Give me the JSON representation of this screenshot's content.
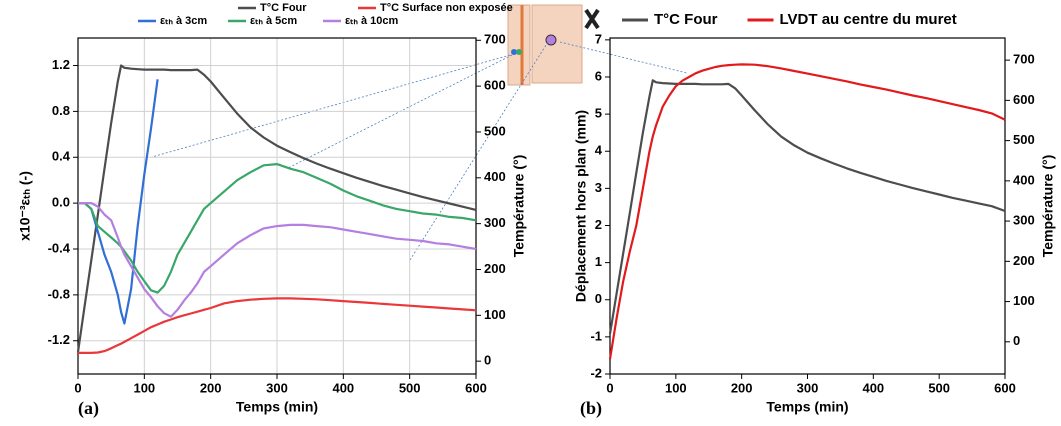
{
  "chart_data": [
    {
      "type": "line",
      "panel_label": "(a)",
      "x_label": "Temps (min)",
      "y_label": "x10⁻³εₜₕ (-)",
      "y2_label": "Température (°)",
      "xlim": [
        0,
        600
      ],
      "xticks": [
        0,
        100,
        200,
        300,
        400,
        500,
        600
      ],
      "ylim": [
        -1.49,
        1.44
      ],
      "yticks": [
        -1.2,
        -0.8,
        -0.4,
        {
          "value": 0,
          "label": "0.0"
        },
        0.4,
        0.8,
        1.2
      ],
      "y2lim": [
        -28,
        705
      ],
      "y2ticks": [
        0,
        100,
        200,
        300,
        400,
        500,
        600,
        700
      ],
      "grid": true,
      "x": [
        0,
        10,
        20,
        30,
        40,
        50,
        60,
        65,
        70,
        80,
        90,
        100,
        110,
        120,
        130,
        140,
        150,
        160,
        170,
        180,
        190,
        200,
        220,
        240,
        260,
        280,
        300,
        320,
        340,
        360,
        380,
        400,
        420,
        440,
        460,
        480,
        500,
        520,
        540,
        560,
        580,
        600
      ],
      "series": [
        {
          "name": "T°C Four",
          "color": "#4d4d4d",
          "axis": "y2",
          "values": [
            20,
            120,
            220,
            320,
            420,
            520,
            610,
            645,
            640,
            638,
            637,
            636,
            636,
            636,
            636,
            635,
            635,
            635,
            635,
            636,
            625,
            610,
            575,
            540,
            510,
            488,
            470,
            456,
            443,
            431,
            420,
            410,
            400,
            391,
            382,
            374,
            366,
            358,
            351,
            344,
            337,
            330
          ]
        },
        {
          "name": "T°C Surface non exposée",
          "color": "#e8383a",
          "axis": "y2",
          "values": [
            18,
            18,
            18,
            19,
            22,
            28,
            35,
            38,
            42,
            50,
            58,
            66,
            74,
            80,
            86,
            91,
            96,
            100,
            104,
            108,
            112,
            116,
            126,
            131,
            134,
            136,
            137,
            137,
            136,
            135,
            133,
            131,
            129,
            127,
            125,
            123,
            121,
            119,
            117,
            115,
            113,
            111
          ]
        },
        {
          "name": "εₜₕ à 3cm",
          "color": "#2f6fd6",
          "values": [
            0,
            0,
            -0.05,
            -0.25,
            -0.45,
            -0.6,
            -0.8,
            -0.95,
            -1.05,
            -0.75,
            -0.2,
            0.25,
            0.65,
            1.08,
            null,
            null,
            null,
            null,
            null,
            null,
            null,
            null,
            null,
            null,
            null,
            null,
            null,
            null,
            null,
            null,
            null,
            null,
            null,
            null,
            null,
            null,
            null,
            null,
            null,
            null,
            null,
            null
          ]
        },
        {
          "name": "εₜₕ à 5cm",
          "color": "#3aa66a",
          "values": [
            0,
            0,
            -0.05,
            -0.2,
            -0.25,
            -0.3,
            -0.35,
            -0.38,
            -0.42,
            -0.5,
            -0.6,
            -0.68,
            -0.76,
            -0.78,
            -0.72,
            -0.6,
            -0.45,
            -0.35,
            -0.25,
            -0.15,
            -0.05,
            0,
            0.1,
            0.2,
            0.27,
            0.33,
            0.34,
            0.3,
            0.27,
            0.22,
            0.17,
            0.11,
            0.06,
            0.02,
            -0.02,
            -0.05,
            -0.07,
            -0.09,
            -0.1,
            -0.12,
            -0.13,
            -0.15
          ]
        },
        {
          "name": "εₜₕ à 10cm",
          "color": "#b47fe0",
          "values": [
            0,
            0,
            0,
            -0.03,
            -0.1,
            -0.15,
            -0.3,
            -0.38,
            -0.45,
            -0.55,
            -0.65,
            -0.75,
            -0.82,
            -0.9,
            -0.96,
            -0.99,
            -0.93,
            -0.85,
            -0.78,
            -0.7,
            -0.6,
            -0.55,
            -0.45,
            -0.35,
            -0.28,
            -0.22,
            -0.2,
            -0.19,
            -0.19,
            -0.2,
            -0.21,
            -0.23,
            -0.25,
            -0.27,
            -0.29,
            -0.31,
            -0.32,
            -0.33,
            -0.35,
            -0.36,
            -0.38,
            -0.4
          ]
        }
      ]
    },
    {
      "type": "line",
      "panel_label": "(b)",
      "x_label": "Temps (min)",
      "y_label": "Déplacement hors plan (mm)",
      "y2_label": "Température (°)",
      "xlim": [
        0,
        600
      ],
      "xticks": [
        0,
        100,
        200,
        300,
        400,
        500,
        600
      ],
      "ylim": [
        -2,
        7.05
      ],
      "yticks": [
        -2,
        -1,
        0,
        1,
        2,
        3,
        4,
        5,
        6,
        7
      ],
      "y2lim": [
        -80,
        755
      ],
      "y2ticks": [
        0,
        100,
        200,
        300,
        400,
        500,
        600,
        700
      ],
      "grid": false,
      "x": [
        0,
        10,
        20,
        30,
        40,
        50,
        60,
        65,
        70,
        80,
        90,
        100,
        110,
        120,
        130,
        140,
        150,
        160,
        170,
        180,
        190,
        200,
        220,
        240,
        260,
        280,
        300,
        320,
        340,
        360,
        380,
        400,
        420,
        440,
        460,
        480,
        500,
        520,
        540,
        560,
        580,
        600
      ],
      "series": [
        {
          "name": "T°C Four",
          "color": "#4d4d4d",
          "axis": "y2",
          "values": [
            20,
            120,
            220,
            320,
            420,
            520,
            610,
            650,
            645,
            643,
            642,
            641,
            641,
            641,
            641,
            640,
            640,
            640,
            640,
            641,
            630,
            612,
            575,
            540,
            510,
            488,
            470,
            456,
            443,
            431,
            420,
            410,
            400,
            391,
            382,
            374,
            366,
            358,
            351,
            344,
            337,
            325
          ]
        },
        {
          "name": "LVDT au centre du muret",
          "color": "#e31a1c",
          "values": [
            -1.6,
            -0.5,
            0.5,
            1.3,
            2.0,
            3.0,
            4.0,
            4.4,
            4.7,
            5.2,
            5.5,
            5.75,
            5.9,
            6.0,
            6.1,
            6.17,
            6.22,
            6.27,
            6.3,
            6.32,
            6.33,
            6.34,
            6.33,
            6.29,
            6.23,
            6.16,
            6.09,
            6.02,
            5.95,
            5.88,
            5.8,
            5.73,
            5.66,
            5.58,
            5.5,
            5.43,
            5.35,
            5.27,
            5.19,
            5.11,
            5.02,
            4.85
          ]
        }
      ]
    }
  ]
}
